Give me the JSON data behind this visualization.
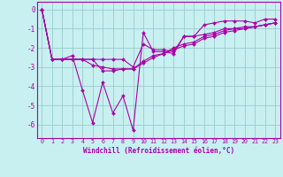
{
  "xlabel": "Windchill (Refroidissement éolien,°C)",
  "x": [
    0,
    1,
    2,
    3,
    4,
    5,
    6,
    7,
    8,
    9,
    10,
    11,
    12,
    13,
    14,
    15,
    16,
    17,
    18,
    19,
    20,
    21,
    22,
    23
  ],
  "line1": [
    0.0,
    -2.6,
    -2.6,
    -2.6,
    -2.6,
    -2.6,
    -2.6,
    -2.6,
    -2.6,
    -3.0,
    -1.8,
    -2.1,
    -2.1,
    -2.2,
    -1.4,
    -1.4,
    -1.3,
    -1.2,
    -1.0,
    -1.0,
    -0.9,
    -0.9,
    -0.8,
    -0.7
  ],
  "line2": [
    0.0,
    -2.6,
    -2.6,
    -2.4,
    -4.2,
    -5.9,
    -3.8,
    -5.4,
    -4.5,
    -6.3,
    -1.2,
    -2.2,
    -2.2,
    -2.3,
    -1.4,
    -1.4,
    -0.8,
    -0.7,
    -0.6,
    -0.6,
    -0.6,
    -0.7,
    -0.5,
    -0.5
  ],
  "line3": [
    0.0,
    -2.6,
    -2.6,
    -2.6,
    -2.6,
    -2.9,
    -3.0,
    -3.1,
    -3.1,
    -3.1,
    -2.8,
    -2.5,
    -2.3,
    -2.1,
    -1.9,
    -1.8,
    -1.5,
    -1.4,
    -1.2,
    -1.1,
    -1.0,
    -0.9,
    -0.8,
    -0.7
  ],
  "line4": [
    0.0,
    -2.6,
    -2.6,
    -2.6,
    -2.6,
    -2.6,
    -3.2,
    -3.2,
    -3.1,
    -3.1,
    -2.7,
    -2.4,
    -2.3,
    -2.0,
    -1.8,
    -1.7,
    -1.4,
    -1.3,
    -1.1,
    -1.0,
    -1.0,
    -0.9,
    -0.8,
    -0.7
  ],
  "bg_color": "#c8f0f0",
  "line_color": "#aa00aa",
  "grid_color": "#99cccc",
  "ylim": [
    -6.7,
    0.4
  ],
  "yticks": [
    0,
    -1,
    -2,
    -3,
    -4,
    -5,
    -6
  ]
}
